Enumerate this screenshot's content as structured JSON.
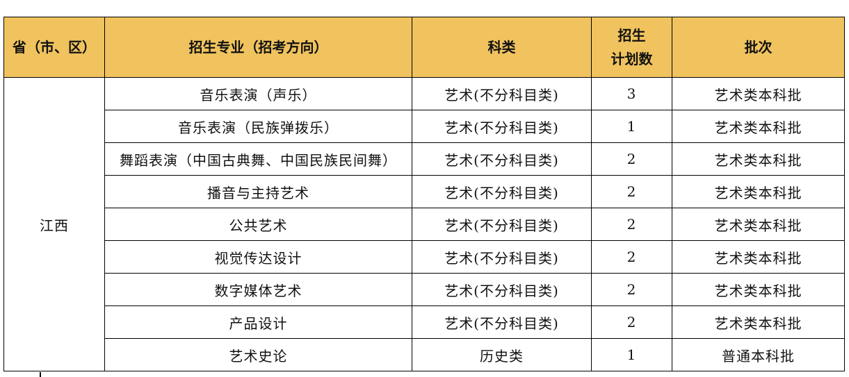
{
  "headers": {
    "province": "省（市、区）",
    "major": "招生专业（招考方向）",
    "category": "科类",
    "plan_line1": "招生",
    "plan_line2": "计划数",
    "batch": "批次"
  },
  "province": "江西",
  "rows": [
    {
      "major": "音乐表演（声乐）",
      "category": "艺术(不分科目类)",
      "plan": "3",
      "batch": "艺术类本科批"
    },
    {
      "major": "音乐表演（民族弹拨乐）",
      "category": "艺术(不分科目类)",
      "plan": "1",
      "batch": "艺术类本科批"
    },
    {
      "major": "舞蹈表演（中国古典舞、中国民族民间舞）",
      "category": "艺术(不分科目类)",
      "plan": "2",
      "batch": "艺术类本科批"
    },
    {
      "major": "播音与主持艺术",
      "category": "艺术(不分科目类)",
      "plan": "2",
      "batch": "艺术类本科批"
    },
    {
      "major": "公共艺术",
      "category": "艺术(不分科目类)",
      "plan": "2",
      "batch": "艺术类本科批"
    },
    {
      "major": "视觉传达设计",
      "category": "艺术(不分科目类)",
      "plan": "2",
      "batch": "艺术类本科批"
    },
    {
      "major": "数字媒体艺术",
      "category": "艺术(不分科目类)",
      "plan": "2",
      "batch": "艺术类本科批"
    },
    {
      "major": "产品设计",
      "category": "艺术(不分科目类)",
      "plan": "2",
      "batch": "艺术类本科批"
    },
    {
      "major": "艺术史论",
      "category": "历史类",
      "plan": "1",
      "batch": "普通本科批"
    }
  ],
  "colors": {
    "header_bg": "#F0C35E"
  }
}
